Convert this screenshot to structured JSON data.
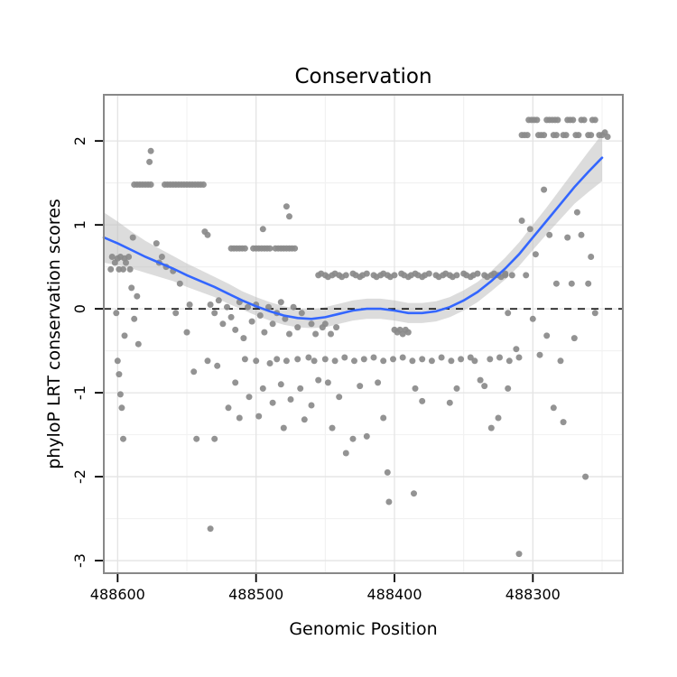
{
  "chart_data": {
    "type": "scatter",
    "title": "Conservation",
    "xlabel": "Genomic Position",
    "ylabel": "phyloP LRT conservation scores",
    "x_axis": {
      "min": 488235,
      "max": 488610,
      "reversed": true,
      "ticks": [
        488600,
        488500,
        488400,
        488300
      ],
      "minor_ticks": [
        488550,
        488450,
        488350,
        488250
      ],
      "tick_labels": [
        "488600",
        "488500",
        "488400",
        "488300"
      ]
    },
    "y_axis": {
      "min": -3.15,
      "max": 2.55,
      "ticks": [
        2,
        1,
        0,
        -1,
        -2,
        -3
      ],
      "minor_ticks": [
        1.5,
        0.5,
        -0.5,
        -1.5,
        -2.5
      ],
      "tick_labels": [
        "2",
        "1",
        "0",
        "-1",
        "-2",
        "-3"
      ]
    },
    "reference_line_y": 0,
    "grid": true,
    "legend": "none",
    "colors": {
      "point": "#8a8a8a",
      "smooth_line": "#3366FF",
      "band": "#bfbfbf",
      "grid_major": "#e4e4e4",
      "grid_minor": "#f2f2f2",
      "border": "#888888",
      "dashed_line": "#000000"
    },
    "smooth": {
      "x": [
        488610,
        488600,
        488590,
        488580,
        488570,
        488560,
        488550,
        488540,
        488530,
        488520,
        488510,
        488500,
        488490,
        488480,
        488470,
        488460,
        488450,
        488440,
        488430,
        488420,
        488410,
        488400,
        488390,
        488380,
        488370,
        488360,
        488350,
        488340,
        488330,
        488320,
        488310,
        488300,
        488290,
        488280,
        488270,
        488260,
        488250
      ],
      "y": [
        0.85,
        0.78,
        0.7,
        0.62,
        0.55,
        0.48,
        0.4,
        0.33,
        0.26,
        0.18,
        0.1,
        0.03,
        -0.03,
        -0.08,
        -0.11,
        -0.12,
        -0.1,
        -0.06,
        -0.02,
        0.0,
        0.0,
        -0.02,
        -0.05,
        -0.05,
        -0.03,
        0.02,
        0.1,
        0.2,
        0.33,
        0.48,
        0.65,
        0.85,
        1.05,
        1.25,
        1.45,
        1.63,
        1.8
      ],
      "margin": [
        0.3,
        0.26,
        0.22,
        0.19,
        0.17,
        0.15,
        0.14,
        0.13,
        0.12,
        0.12,
        0.11,
        0.11,
        0.11,
        0.11,
        0.11,
        0.11,
        0.12,
        0.12,
        0.12,
        0.12,
        0.12,
        0.12,
        0.12,
        0.12,
        0.12,
        0.12,
        0.12,
        0.12,
        0.12,
        0.13,
        0.14,
        0.15,
        0.16,
        0.18,
        0.2,
        0.24,
        0.28
      ]
    },
    "points": [
      [
        488605,
        0.47
      ],
      [
        488604,
        0.62
      ],
      [
        488602,
        0.55
      ],
      [
        488601,
        -0.05
      ],
      [
        488600,
        0.6
      ],
      [
        488600,
        -0.62
      ],
      [
        488599,
        0.47
      ],
      [
        488599,
        -0.78
      ],
      [
        488598,
        0.62
      ],
      [
        488598,
        -1.02
      ],
      [
        488597,
        -1.18
      ],
      [
        488596,
        0.47
      ],
      [
        488596,
        -1.55
      ],
      [
        488595,
        0.6
      ],
      [
        488595,
        -0.32
      ],
      [
        488594,
        0.55
      ],
      [
        488592,
        0.62
      ],
      [
        488591,
        0.47
      ],
      [
        488590,
        0.25
      ],
      [
        488589,
        0.85
      ],
      [
        488588,
        -0.12
      ],
      [
        488586,
        0.15
      ],
      [
        488585,
        -0.42
      ],
      [
        488588,
        1.48
      ],
      [
        488586,
        1.48
      ],
      [
        488584,
        1.48
      ],
      [
        488582,
        1.48
      ],
      [
        488580,
        1.48
      ],
      [
        488578,
        1.48
      ],
      [
        488576,
        1.48
      ],
      [
        488577,
        1.75
      ],
      [
        488576,
        1.88
      ],
      [
        488566,
        1.48
      ],
      [
        488564,
        1.48
      ],
      [
        488562,
        1.48
      ],
      [
        488560,
        1.48
      ],
      [
        488558,
        1.48
      ],
      [
        488556,
        1.48
      ],
      [
        488554,
        1.48
      ],
      [
        488552,
        1.48
      ],
      [
        488550,
        1.48
      ],
      [
        488548,
        1.48
      ],
      [
        488546,
        1.48
      ],
      [
        488544,
        1.48
      ],
      [
        488542,
        1.48
      ],
      [
        488540,
        1.48
      ],
      [
        488538,
        1.48
      ],
      [
        488572,
        0.78
      ],
      [
        488570,
        0.55
      ],
      [
        488568,
        0.62
      ],
      [
        488565,
        0.5
      ],
      [
        488560,
        0.45
      ],
      [
        488558,
        -0.05
      ],
      [
        488555,
        0.3
      ],
      [
        488550,
        -0.28
      ],
      [
        488548,
        0.05
      ],
      [
        488545,
        -0.75
      ],
      [
        488543,
        -1.55
      ],
      [
        488537,
        0.92
      ],
      [
        488535,
        0.88
      ],
      [
        488518,
        0.72
      ],
      [
        488516,
        0.72
      ],
      [
        488514,
        0.72
      ],
      [
        488512,
        0.72
      ],
      [
        488510,
        0.72
      ],
      [
        488508,
        0.72
      ],
      [
        488502,
        0.72
      ],
      [
        488500,
        0.72
      ],
      [
        488498,
        0.72
      ],
      [
        488496,
        0.72
      ],
      [
        488494,
        0.72
      ],
      [
        488492,
        0.72
      ],
      [
        488490,
        0.72
      ],
      [
        488486,
        0.72
      ],
      [
        488484,
        0.72
      ],
      [
        488482,
        0.72
      ],
      [
        488480,
        0.72
      ],
      [
        488478,
        0.72
      ],
      [
        488476,
        0.72
      ],
      [
        488474,
        0.72
      ],
      [
        488472,
        0.72
      ],
      [
        488495,
        0.95
      ],
      [
        488533,
        0.05
      ],
      [
        488530,
        -0.05
      ],
      [
        488527,
        0.1
      ],
      [
        488524,
        -0.18
      ],
      [
        488521,
        0.02
      ],
      [
        488518,
        -0.1
      ],
      [
        488515,
        -0.25
      ],
      [
        488512,
        0.08
      ],
      [
        488509,
        -0.35
      ],
      [
        488506,
        0.02
      ],
      [
        488503,
        -0.15
      ],
      [
        488500,
        0.05
      ],
      [
        488497,
        -0.08
      ],
      [
        488494,
        -0.28
      ],
      [
        488491,
        0.02
      ],
      [
        488488,
        -0.18
      ],
      [
        488485,
        -0.05
      ],
      [
        488482,
        0.08
      ],
      [
        488479,
        -0.12
      ],
      [
        488476,
        -0.3
      ],
      [
        488473,
        0.02
      ],
      [
        488470,
        -0.22
      ],
      [
        488467,
        -0.05
      ],
      [
        488460,
        -0.18
      ],
      [
        488457,
        -0.3
      ],
      [
        488452,
        -0.22
      ],
      [
        488450,
        -0.18
      ],
      [
        488446,
        -0.3
      ],
      [
        488442,
        -0.22
      ],
      [
        488535,
        -0.62
      ],
      [
        488533,
        -2.62
      ],
      [
        488530,
        -1.55
      ],
      [
        488528,
        -0.68
      ],
      [
        488520,
        -1.18
      ],
      [
        488515,
        -0.88
      ],
      [
        488512,
        -1.3
      ],
      [
        488508,
        -0.6
      ],
      [
        488505,
        -1.05
      ],
      [
        488500,
        -0.62
      ],
      [
        488498,
        -1.28
      ],
      [
        488495,
        -0.95
      ],
      [
        488490,
        -0.65
      ],
      [
        488488,
        -1.12
      ],
      [
        488485,
        -0.6
      ],
      [
        488482,
        -0.9
      ],
      [
        488480,
        -1.42
      ],
      [
        488478,
        -0.62
      ],
      [
        488475,
        -1.08
      ],
      [
        488470,
        -0.6
      ],
      [
        488468,
        -0.95
      ],
      [
        488465,
        -1.32
      ],
      [
        488462,
        -0.58
      ],
      [
        488460,
        -1.15
      ],
      [
        488458,
        -0.62
      ],
      [
        488455,
        -0.85
      ],
      [
        488478,
        1.22
      ],
      [
        488476,
        1.1
      ],
      [
        488455,
        0.4
      ],
      [
        488453,
        0.42
      ],
      [
        488450,
        0.4
      ],
      [
        488448,
        0.38
      ],
      [
        488445,
        0.4
      ],
      [
        488443,
        0.42
      ],
      [
        488440,
        0.4
      ],
      [
        488438,
        0.38
      ],
      [
        488435,
        0.4
      ],
      [
        488430,
        0.42
      ],
      [
        488428,
        0.4
      ],
      [
        488425,
        0.38
      ],
      [
        488423,
        0.4
      ],
      [
        488420,
        0.42
      ],
      [
        488415,
        0.4
      ],
      [
        488413,
        0.38
      ],
      [
        488410,
        0.4
      ],
      [
        488408,
        0.42
      ],
      [
        488405,
        0.4
      ],
      [
        488403,
        0.38
      ],
      [
        488400,
        0.4
      ],
      [
        488395,
        0.42
      ],
      [
        488393,
        0.4
      ],
      [
        488390,
        0.38
      ],
      [
        488388,
        0.4
      ],
      [
        488385,
        0.42
      ],
      [
        488383,
        0.4
      ],
      [
        488380,
        0.38
      ],
      [
        488378,
        0.4
      ],
      [
        488375,
        0.42
      ],
      [
        488370,
        0.4
      ],
      [
        488368,
        0.38
      ],
      [
        488365,
        0.4
      ],
      [
        488363,
        0.42
      ],
      [
        488360,
        0.4
      ],
      [
        488358,
        0.38
      ],
      [
        488355,
        0.4
      ],
      [
        488350,
        0.42
      ],
      [
        488348,
        0.4
      ],
      [
        488345,
        0.38
      ],
      [
        488343,
        0.4
      ],
      [
        488340,
        0.42
      ],
      [
        488335,
        0.4
      ],
      [
        488333,
        0.38
      ],
      [
        488330,
        0.4
      ],
      [
        488328,
        0.42
      ],
      [
        488325,
        0.4
      ],
      [
        488323,
        0.38
      ],
      [
        488320,
        0.4
      ],
      [
        488450,
        -0.6
      ],
      [
        488443,
        -0.62
      ],
      [
        488436,
        -0.58
      ],
      [
        488429,
        -0.62
      ],
      [
        488422,
        -0.6
      ],
      [
        488415,
        -0.58
      ],
      [
        488408,
        -0.62
      ],
      [
        488401,
        -0.6
      ],
      [
        488394,
        -0.58
      ],
      [
        488387,
        -0.62
      ],
      [
        488380,
        -0.6
      ],
      [
        488373,
        -0.62
      ],
      [
        488366,
        -0.58
      ],
      [
        488359,
        -0.62
      ],
      [
        488352,
        -0.6
      ],
      [
        488345,
        -0.58
      ],
      [
        488342,
        -0.62
      ],
      [
        488338,
        -0.85
      ],
      [
        488331,
        -0.6
      ],
      [
        488324,
        -0.58
      ],
      [
        488317,
        -0.62
      ],
      [
        488310,
        -0.58
      ],
      [
        488448,
        -0.88
      ],
      [
        488445,
        -1.42
      ],
      [
        488440,
        -1.05
      ],
      [
        488435,
        -1.72
      ],
      [
        488430,
        -1.55
      ],
      [
        488425,
        -0.92
      ],
      [
        488420,
        -1.52
      ],
      [
        488412,
        -0.88
      ],
      [
        488408,
        -1.3
      ],
      [
        488405,
        -1.95
      ],
      [
        488404,
        -2.3
      ],
      [
        488400,
        -0.25
      ],
      [
        488398,
        -0.28
      ],
      [
        488396,
        -0.25
      ],
      [
        488394,
        -0.3
      ],
      [
        488392,
        -0.25
      ],
      [
        488390,
        -0.28
      ],
      [
        488386,
        -2.2
      ],
      [
        488385,
        -0.95
      ],
      [
        488380,
        -1.1
      ],
      [
        488360,
        -1.12
      ],
      [
        488355,
        -0.95
      ],
      [
        488335,
        -0.92
      ],
      [
        488330,
        -1.42
      ],
      [
        488325,
        -1.3
      ],
      [
        488318,
        -0.95
      ],
      [
        488310,
        -2.92
      ],
      [
        488303,
        2.25
      ],
      [
        488301,
        2.25
      ],
      [
        488299,
        2.25
      ],
      [
        488297,
        2.25
      ],
      [
        488290,
        2.25
      ],
      [
        488288,
        2.25
      ],
      [
        488286,
        2.25
      ],
      [
        488284,
        2.25
      ],
      [
        488282,
        2.25
      ],
      [
        488275,
        2.25
      ],
      [
        488273,
        2.25
      ],
      [
        488271,
        2.25
      ],
      [
        488265,
        2.25
      ],
      [
        488263,
        2.25
      ],
      [
        488257,
        2.25
      ],
      [
        488255,
        2.25
      ],
      [
        488308,
        2.07
      ],
      [
        488306,
        2.07
      ],
      [
        488304,
        2.07
      ],
      [
        488296,
        2.07
      ],
      [
        488294,
        2.07
      ],
      [
        488292,
        2.07
      ],
      [
        488285,
        2.07
      ],
      [
        488283,
        2.07
      ],
      [
        488278,
        2.07
      ],
      [
        488276,
        2.07
      ],
      [
        488269,
        2.07
      ],
      [
        488267,
        2.07
      ],
      [
        488260,
        2.07
      ],
      [
        488258,
        2.07
      ],
      [
        488252,
        2.07
      ],
      [
        488250,
        2.07
      ],
      [
        488248,
        2.1
      ],
      [
        488246,
        2.05
      ],
      [
        488320,
        0.42
      ],
      [
        488315,
        0.4
      ],
      [
        488312,
        -0.48
      ],
      [
        488318,
        -0.05
      ],
      [
        488308,
        1.05
      ],
      [
        488305,
        0.4
      ],
      [
        488302,
        0.95
      ],
      [
        488300,
        -0.12
      ],
      [
        488298,
        0.65
      ],
      [
        488295,
        -0.55
      ],
      [
        488292,
        1.42
      ],
      [
        488290,
        -0.32
      ],
      [
        488288,
        0.88
      ],
      [
        488285,
        -1.18
      ],
      [
        488283,
        0.3
      ],
      [
        488280,
        -0.62
      ],
      [
        488278,
        -1.35
      ],
      [
        488275,
        0.85
      ],
      [
        488272,
        0.3
      ],
      [
        488270,
        -0.35
      ],
      [
        488268,
        1.15
      ],
      [
        488265,
        0.88
      ],
      [
        488262,
        -2.0
      ],
      [
        488260,
        0.3
      ],
      [
        488258,
        0.62
      ],
      [
        488255,
        -0.05
      ]
    ]
  }
}
